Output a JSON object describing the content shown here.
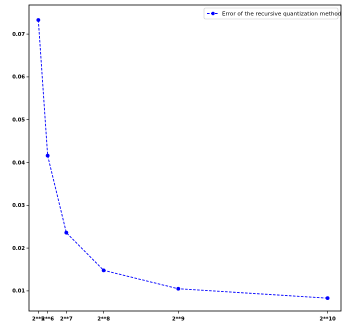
{
  "chart_data": {
    "type": "line",
    "title": "",
    "xlabel": "",
    "ylabel": "",
    "x": [
      32,
      64,
      128,
      256,
      512,
      1024
    ],
    "x_tick_labels": [
      "2**5",
      "2**6",
      "2**7",
      "2**8",
      "2**9",
      "2**10"
    ],
    "series": [
      {
        "name": "Error of the recursive quantization method",
        "values": [
          0.0733,
          0.0416,
          0.0236,
          0.0148,
          0.0105,
          0.0083
        ],
        "color": "#0000ff",
        "line_style": "dashed",
        "marker": "circle"
      }
    ],
    "xlim": [
      0,
      1070
    ],
    "ylim": [
      0.0053,
      0.0768
    ],
    "y_ticks": [
      0.01,
      0.02,
      0.03,
      0.04,
      0.05,
      0.06,
      0.07
    ],
    "y_tick_labels": [
      "0.01",
      "0.02",
      "0.03",
      "0.04",
      "0.05",
      "0.06",
      "0.07"
    ],
    "grid": false,
    "legend_position": "top-right"
  }
}
